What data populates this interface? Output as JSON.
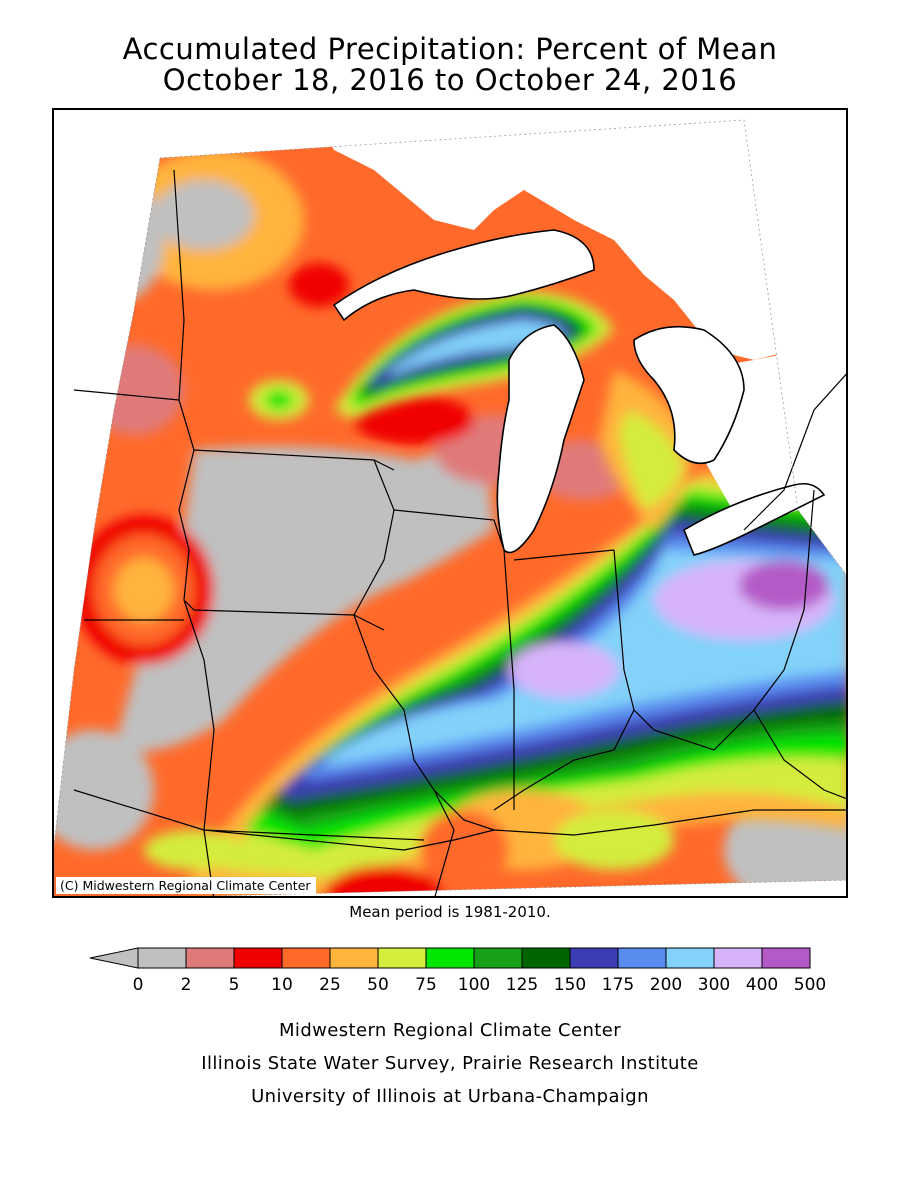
{
  "title_line1": "Accumulated Precipitation: Percent of Mean",
  "title_line2": "October 18, 2016 to October 24, 2016",
  "copyright": "(C) Midwestern Regional Climate Center",
  "mean_period": "Mean period is 1981-2010.",
  "legend": {
    "bins": [
      {
        "label": "0",
        "color": "#c0c0c0"
      },
      {
        "label": "2",
        "color": "#e07a7a"
      },
      {
        "label": "5",
        "color": "#f00000"
      },
      {
        "label": "10",
        "color": "#ff6a2a"
      },
      {
        "label": "25",
        "color": "#ffb43c"
      },
      {
        "label": "50",
        "color": "#d4ec3c"
      },
      {
        "label": "75",
        "color": "#00e600"
      },
      {
        "label": "100",
        "color": "#19a019"
      },
      {
        "label": "125",
        "color": "#006400"
      },
      {
        "label": "150",
        "color": "#3c3cb4"
      },
      {
        "label": "175",
        "color": "#5a8cf0"
      },
      {
        "label": "200",
        "color": "#82d2fa"
      },
      {
        "label": "300",
        "color": "#d7b4fa"
      },
      {
        "label": "400",
        "color": "#b45ac8"
      },
      {
        "label": "500",
        "color": null
      }
    ]
  },
  "footer_line1": "Midwestern Regional Climate Center",
  "footer_line2": "Illinois State Water Survey, Prairie Research Institute",
  "footer_line3": "University of Illinois at Urbana-Champaign"
}
